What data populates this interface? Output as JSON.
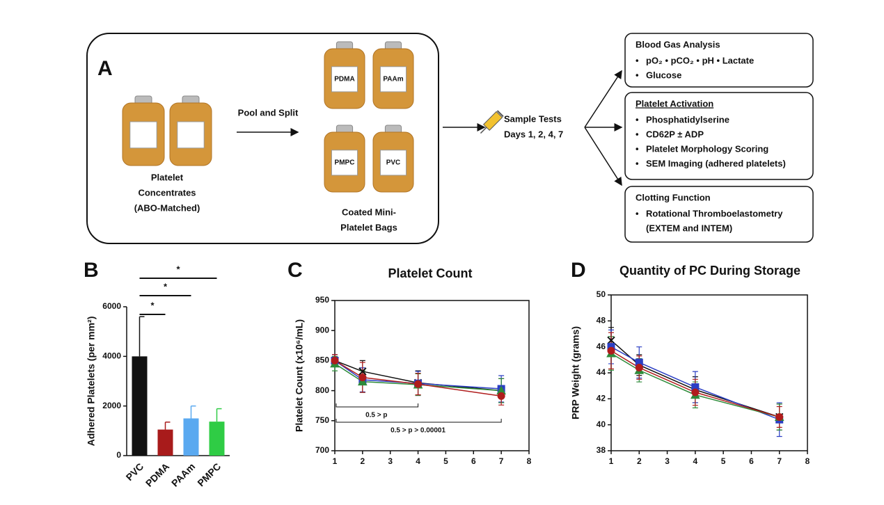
{
  "diagram": {
    "panel": "A",
    "source_caption": [
      "Platelet",
      "Concentrates",
      "(ABO-Matched)"
    ],
    "step": "Pool and Split",
    "bags": [
      "PDMA",
      "PAAm",
      "PMPC",
      "PVC"
    ],
    "bags_caption": [
      "Coated Mini-",
      "Platelet Bags"
    ],
    "sample": [
      "Sample Tests",
      "Days 1, 2, 4, 7"
    ],
    "boxes": [
      {
        "title": "Blood Gas Analysis",
        "items": [
          "pO₂ • pCO₂ • pH • Lactate",
          "Glucose"
        ]
      },
      {
        "title": "Platelet Activation",
        "items": [
          "Phosphatidylserine",
          "CD62P ± ADP",
          "Platelet Morphology Scoring",
          "SEM Imaging (adhered platelets)"
        ]
      },
      {
        "title": "Clotting Function",
        "items": [
          "Rotational Thromboelastometry",
          "(EXTEM and INTEM)"
        ]
      }
    ]
  },
  "chart_data": [
    {
      "type": "bar",
      "panel": "B",
      "y_label": "Adhered Platelets (per mm²)",
      "categories": [
        "PVC",
        "PDMA",
        "PAAm",
        "PMPC"
      ],
      "values": [
        4000,
        1050,
        1500,
        1370
      ],
      "errors": [
        1600,
        300,
        500,
        520
      ],
      "colors": [
        "#111111",
        "#a81b1b",
        "#5aa9f0",
        "#2fcc45"
      ],
      "ylim": [
        0,
        6000
      ],
      "yticks": [
        0,
        2000,
        4000,
        6000
      ],
      "annotations": [
        "*",
        "*",
        "*"
      ]
    },
    {
      "type": "line",
      "panel": "C",
      "title": "Platelet Count",
      "y_label": "Platelet Count (x10⁶/mL)",
      "x": [
        1,
        2,
        4,
        7
      ],
      "xlim": [
        1,
        8
      ],
      "xticks": [
        1,
        2,
        3,
        4,
        5,
        6,
        7,
        8
      ],
      "ylim": [
        700,
        950
      ],
      "yticks": [
        700,
        750,
        800,
        850,
        900,
        950
      ],
      "series": [
        {
          "color": "#111111",
          "marker": "x",
          "values": [
            850,
            832,
            813,
            800
          ],
          "errors": [
            10,
            18,
            20,
            20
          ]
        },
        {
          "color": "#2b3fc4",
          "marker": "square",
          "values": [
            850,
            818,
            812,
            803
          ],
          "errors": [
            10,
            20,
            20,
            22
          ]
        },
        {
          "color": "#2e8b3a",
          "marker": "triangle",
          "values": [
            845,
            815,
            810,
            800
          ],
          "errors": [
            12,
            18,
            18,
            20
          ]
        },
        {
          "color": "#b01c1c",
          "marker": "circle",
          "values": [
            850,
            822,
            811,
            791
          ],
          "errors": [
            10,
            25,
            18,
            15
          ]
        }
      ],
      "annotations": [
        "0.5 > p",
        "0.5 > p > 0.00001"
      ]
    },
    {
      "type": "line",
      "panel": "D",
      "title": "Quantity of PC During Storage",
      "y_label": "PRP Weight (grams)",
      "x": [
        1,
        2,
        4,
        7
      ],
      "xlim": [
        1,
        8
      ],
      "xticks": [
        1,
        2,
        3,
        4,
        5,
        6,
        7,
        8
      ],
      "ylim": [
        38,
        50
      ],
      "yticks": [
        38,
        40,
        42,
        44,
        46,
        48,
        50
      ],
      "series": [
        {
          "color": "#111111",
          "marker": "x",
          "values": [
            46.5,
            44.6,
            42.7,
            40.6
          ],
          "errors": [
            1.0,
            0.8,
            1.0,
            1.0
          ]
        },
        {
          "color": "#2b3fc4",
          "marker": "square",
          "values": [
            46.0,
            44.8,
            42.9,
            40.4
          ],
          "errors": [
            1.3,
            1.2,
            1.2,
            1.3
          ]
        },
        {
          "color": "#2e8b3a",
          "marker": "triangle",
          "values": [
            45.5,
            44.2,
            42.3,
            40.6
          ],
          "errors": [
            1.3,
            0.9,
            1.0,
            1.0
          ]
        },
        {
          "color": "#b01c1c",
          "marker": "circle",
          "values": [
            45.7,
            44.4,
            42.5,
            40.6
          ],
          "errors": [
            1.4,
            0.9,
            1.0,
            0.8
          ]
        }
      ]
    }
  ]
}
